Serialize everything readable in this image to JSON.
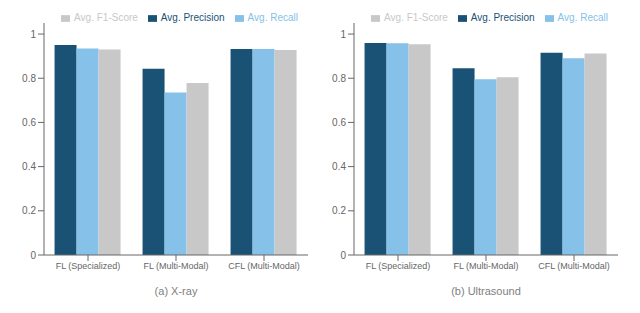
{
  "chart_data": [
    {
      "type": "bar",
      "xlabel": "(a) X-ray",
      "categories": [
        "FL (Specialized)",
        "FL (Multi-Modal)",
        "CFL (Multi-Modal)"
      ],
      "series": [
        {
          "name": "Avg. Precision",
          "color": "#1a5276",
          "values": [
            0.95,
            0.843,
            0.932
          ]
        },
        {
          "name": "Avg. Recall",
          "color": "#85c1e9",
          "values": [
            0.935,
            0.735,
            0.932
          ]
        },
        {
          "name": "Avg. F1-Score",
          "color": "#c8c8c8",
          "values": [
            0.93,
            0.778,
            0.928
          ]
        }
      ],
      "ylim": [
        0,
        1.05
      ],
      "yticks": [
        0,
        0.2,
        0.4,
        0.6,
        0.8,
        1
      ],
      "grid": false,
      "legend": "upper right"
    },
    {
      "type": "bar",
      "xlabel": "(b) Ultrasound",
      "categories": [
        "FL (Specialized)",
        "FL (Multi-Modal)",
        "CFL (Multi-Modal)"
      ],
      "series": [
        {
          "name": "Avg. Precision",
          "color": "#1a5276",
          "values": [
            0.96,
            0.845,
            0.915
          ]
        },
        {
          "name": "Avg. Recall",
          "color": "#85c1e9",
          "values": [
            0.958,
            0.795,
            0.89
          ]
        },
        {
          "name": "Avg. F1-Score",
          "color": "#c8c8c8",
          "values": [
            0.954,
            0.805,
            0.912
          ]
        }
      ],
      "ylim": [
        0,
        1.05
      ],
      "yticks": [
        0,
        0.2,
        0.4,
        0.6,
        0.8,
        1
      ],
      "grid": false,
      "legend": "upper right"
    }
  ]
}
